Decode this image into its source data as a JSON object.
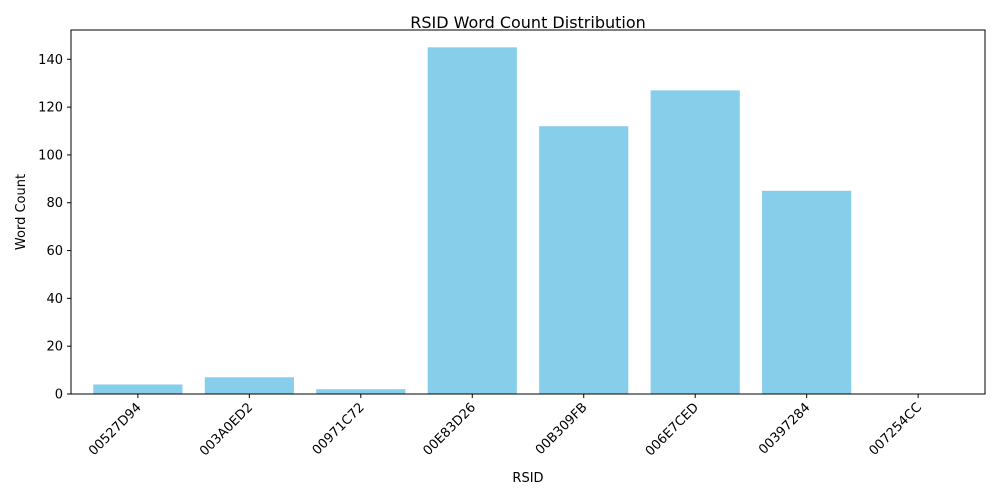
{
  "chart_data": {
    "type": "bar",
    "title": "RSID Word Count Distribution",
    "xlabel": "RSID",
    "ylabel": "Word Count",
    "categories": [
      "00527D94",
      "003A0ED2",
      "00971C72",
      "00E83D26",
      "00B309FB",
      "006E7CED",
      "00397284",
      "007254CC"
    ],
    "values": [
      4,
      7,
      2,
      145,
      112,
      127,
      85,
      0
    ],
    "ylim": [
      0,
      152.25
    ],
    "yticks": [
      0,
      20,
      40,
      60,
      80,
      100,
      120,
      140
    ],
    "bar_color": "#87CEEB",
    "grid": false,
    "legend": "none"
  }
}
